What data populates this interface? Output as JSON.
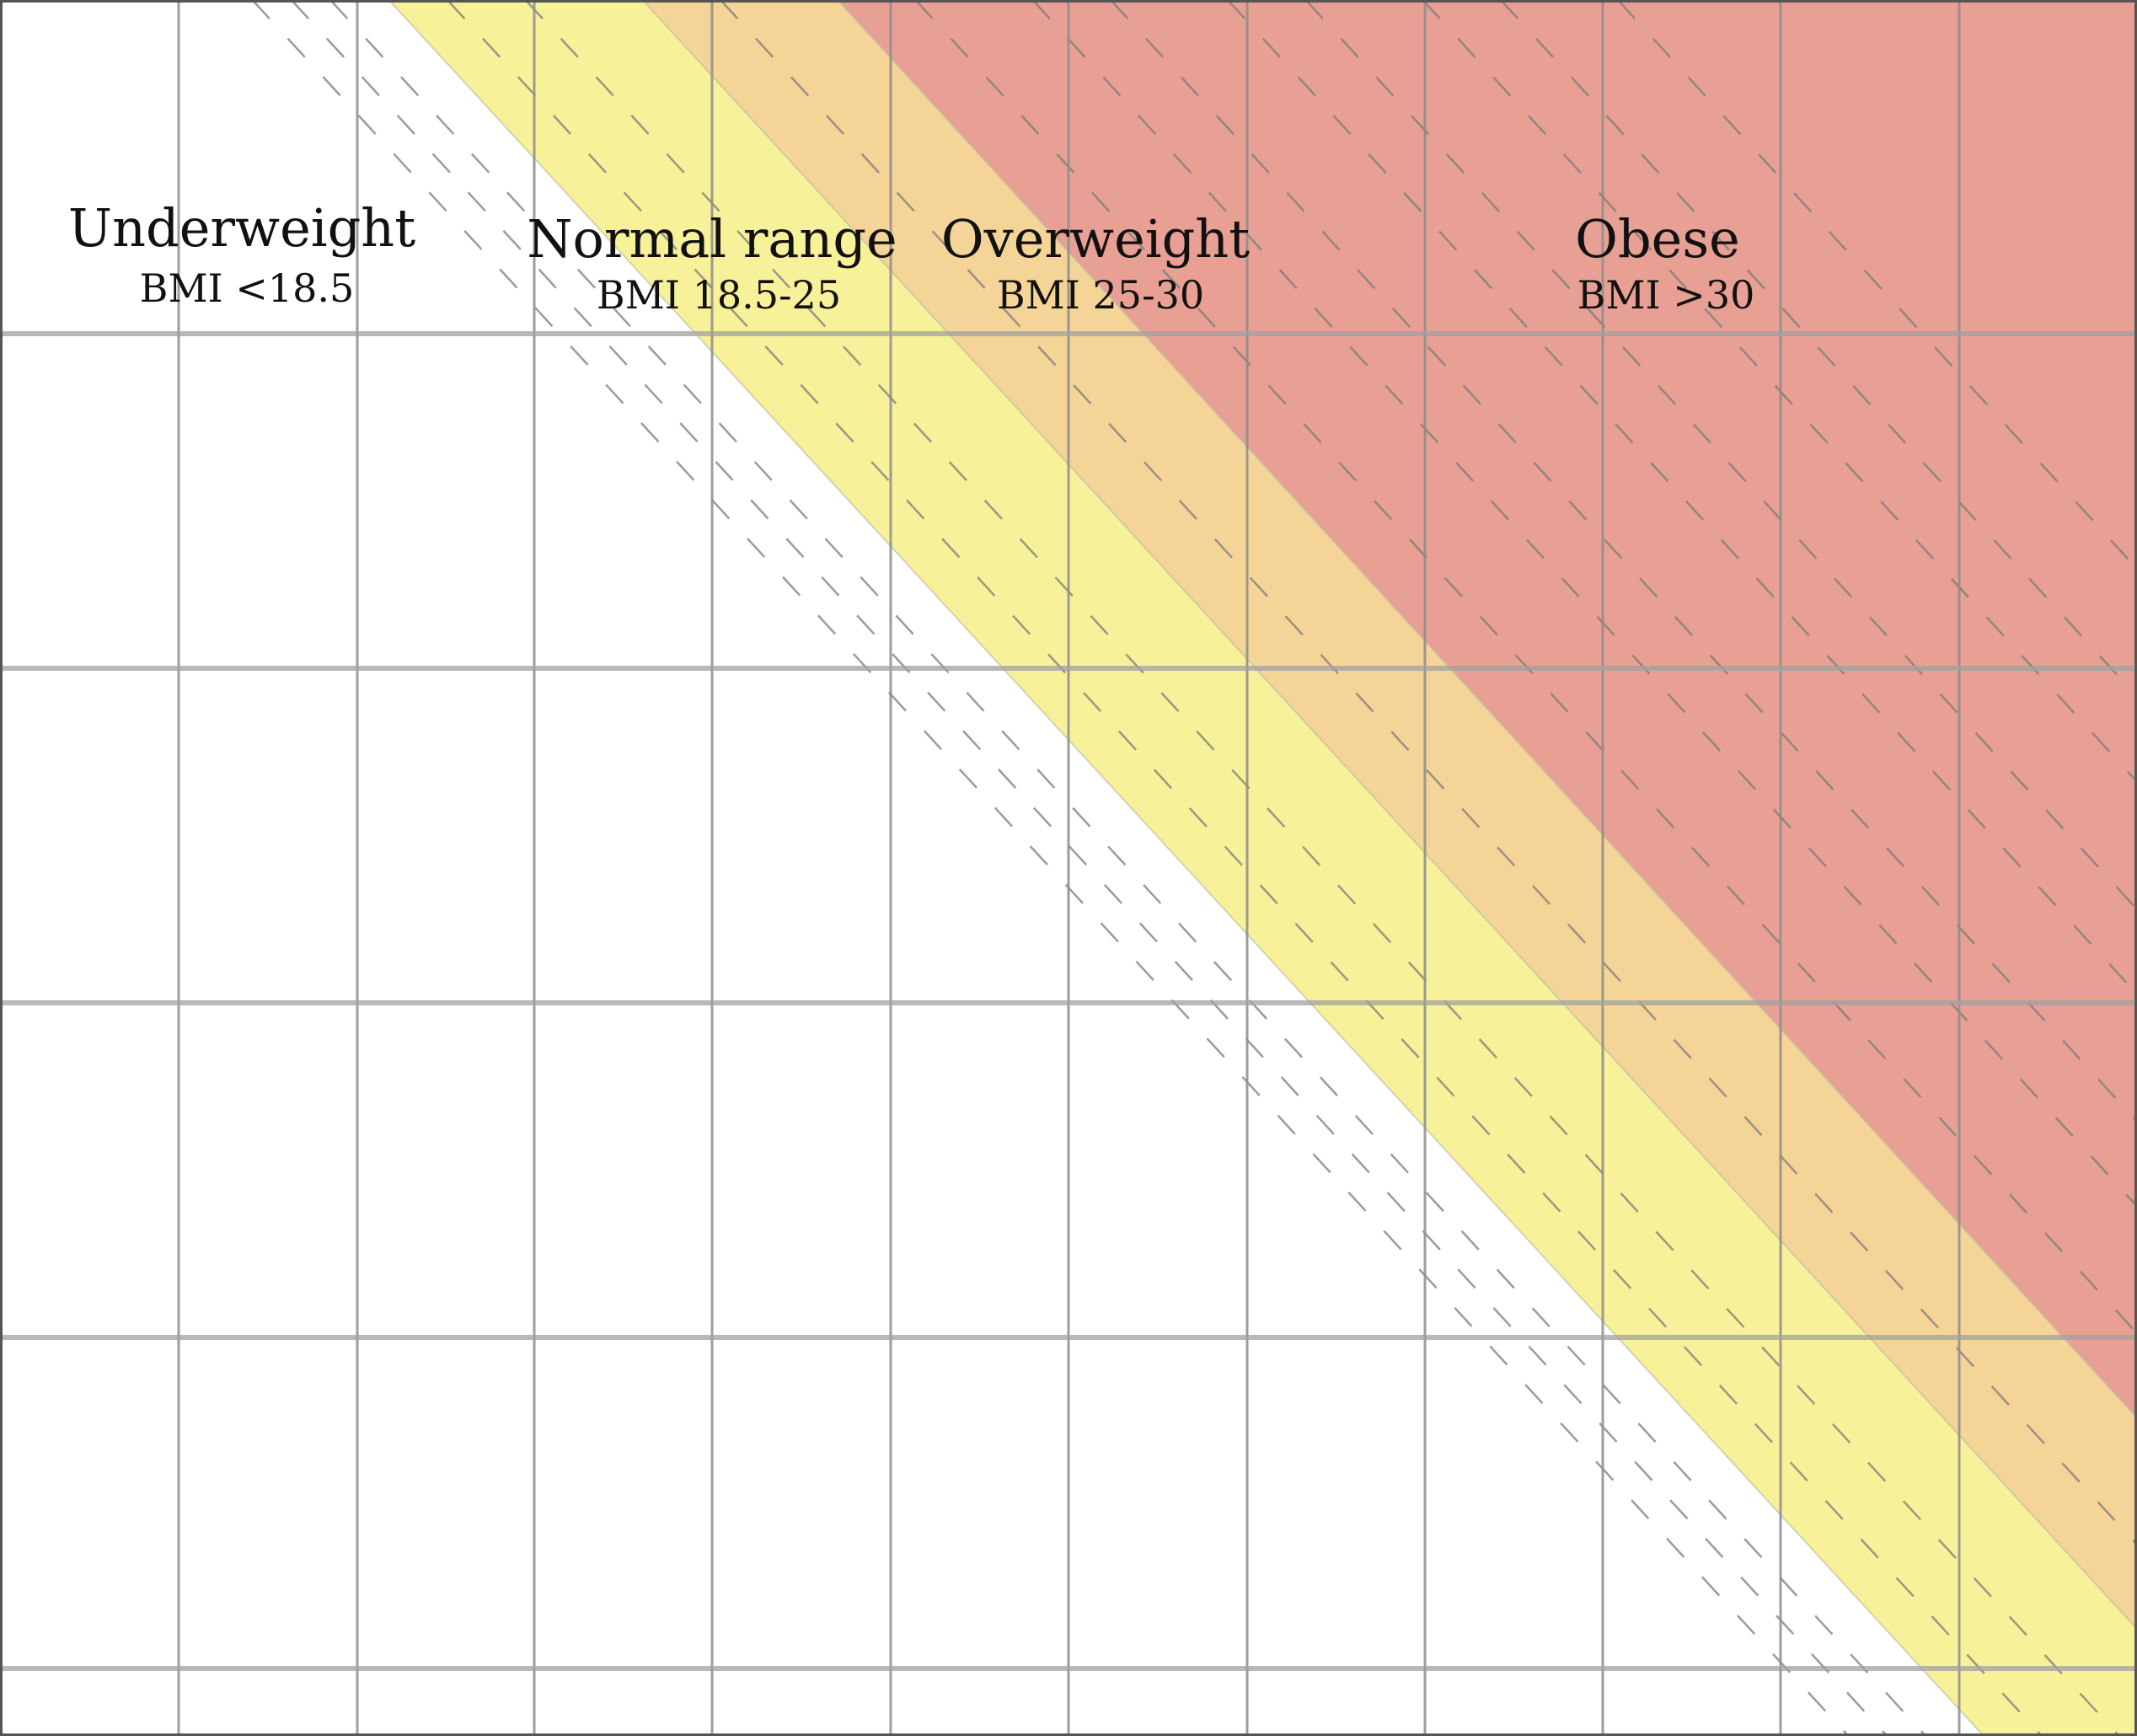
{
  "chart_data": {
    "type": "area",
    "title": "",
    "xlabel": "",
    "ylabel": "",
    "grid": true,
    "bands": [
      {
        "name": "Underweight",
        "sub": "BMI <18.5",
        "bmi_min": 0,
        "bmi_max": 18.5,
        "color": "#ffffff"
      },
      {
        "name": "Normal range",
        "sub": "BMI 18.5-25",
        "bmi_min": 18.5,
        "bmi_max": 25,
        "color": "#f7f19a"
      },
      {
        "name": "Overweight",
        "sub": "BMI 25-30",
        "bmi_min": 25,
        "bmi_max": 30,
        "color": "#f5d597"
      },
      {
        "name": "Obese",
        "sub": "BMI >30",
        "bmi_min": 30,
        "bmi_max": null,
        "color": "#e8a094"
      }
    ],
    "dashed_bmi_lines": [
      15,
      16,
      17,
      20,
      22,
      27,
      32,
      35,
      37,
      40,
      42,
      45,
      47,
      50
    ]
  },
  "colors": {
    "grid_major": "#8c8c8c",
    "grid_minor": "#a0a0a0",
    "dashed_line": "#7a7a7a",
    "border": "#555555"
  }
}
